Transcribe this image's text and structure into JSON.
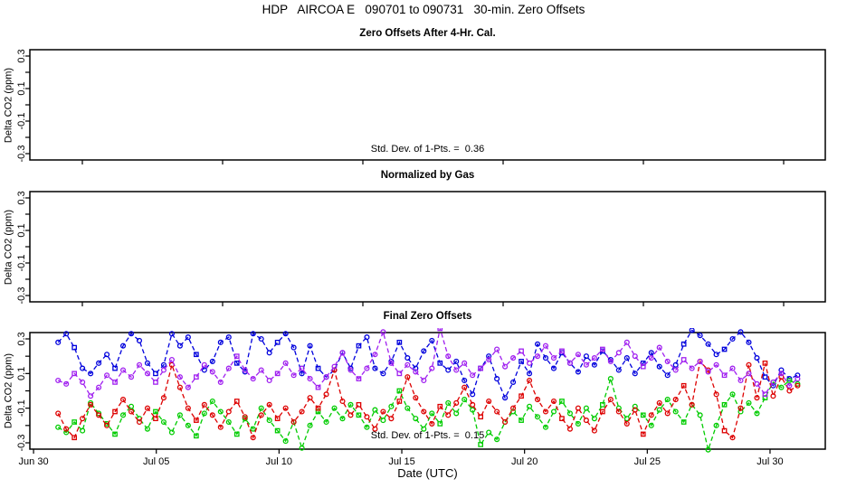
{
  "title": "HDP   AIRCOA E   090701 to 090731   30-min. Zero Offsets",
  "xlabel": "Date (UTC)",
  "ylabel": "Delta CO2 (ppm)",
  "colors": {
    "axis": "#000000",
    "blue": "#0000DD",
    "purple": "#A020F0",
    "red": "#DD0000",
    "green": "#00CC00"
  },
  "chart_data": [
    {
      "type": "scatter",
      "title": "Zero Offsets After 4-Hr. Cal.",
      "annotation": "Std. Dev. of 1-Pts. =  0.36",
      "ylabel": "Delta CO2 (ppm)",
      "ylim": [
        -0.32,
        0.32
      ],
      "yticks": [
        0.3,
        0.1,
        -0.1,
        -0.3
      ],
      "grid": false,
      "series": []
    },
    {
      "type": "scatter",
      "title": "Normalized by Gas",
      "annotation": "",
      "ylabel": "Delta CO2 (ppm)",
      "ylim": [
        -0.32,
        0.32
      ],
      "yticks": [
        0.3,
        0.1,
        -0.1,
        -0.3
      ],
      "grid": false,
      "series": []
    },
    {
      "type": "scatter",
      "title": "Final Zero Offsets",
      "annotation": "Std. Dev. of 1-Pts. =  0.15",
      "ylabel": "Delta CO2 (ppm)",
      "xlabel": "Date (UTC)",
      "ylim": [
        -0.32,
        0.32
      ],
      "yticks": [
        0.3,
        0.1,
        -0.1,
        -0.3
      ],
      "grid": false,
      "xticks": [
        {
          "label": "Jun 30",
          "day": 0
        },
        {
          "label": "Jul 05",
          "day": 5
        },
        {
          "label": "Jul 10",
          "day": 10
        },
        {
          "label": "Jul 15",
          "day": 15
        },
        {
          "label": "Jul 20",
          "day": 20
        },
        {
          "label": "Jul 25",
          "day": 25
        },
        {
          "label": "Jul 30",
          "day": 30
        }
      ],
      "x_unit": "days since Jun 30 00:00 UTC",
      "series": [
        {
          "name": "blue",
          "color": "#0000DD",
          "marker": "open-circle",
          "line": "dashed",
          "x_start": 1.0,
          "x_step": 0.331,
          "values": [
            0.28,
            0.33,
            0.25,
            0.13,
            0.1,
            0.16,
            0.21,
            0.13,
            0.26,
            0.33,
            0.29,
            0.16,
            0.1,
            0.15,
            0.33,
            0.26,
            0.31,
            0.21,
            0.12,
            0.17,
            0.28,
            0.31,
            0.16,
            0.11,
            0.33,
            0.3,
            0.22,
            0.28,
            0.33,
            0.25,
            0.1,
            0.26,
            0.13,
            0.08,
            0.12,
            0.22,
            0.13,
            0.26,
            0.31,
            0.13,
            0.1,
            0.17,
            0.28,
            0.19,
            0.13,
            0.23,
            0.29,
            0.16,
            0.12,
            0.17,
            0.06,
            -0.02,
            0.13,
            0.2,
            0.07,
            -0.04,
            0.05,
            0.17,
            0.1,
            0.27,
            0.19,
            0.13,
            0.22,
            0.16,
            0.11,
            0.2,
            0.15,
            0.23,
            0.18,
            0.12,
            0.19,
            0.1,
            0.16,
            0.22,
            0.14,
            0.09,
            0.15,
            0.27,
            0.35,
            0.32,
            0.27,
            0.21,
            0.24,
            0.3,
            0.34,
            0.28,
            0.19,
            0.08,
            0.03,
            0.12,
            0.07,
            0.09
          ]
        },
        {
          "name": "green",
          "color": "#00CC00",
          "marker": "open-circle",
          "line": "dashed",
          "x_start": 1.0,
          "x_step": 0.331,
          "values": [
            -0.21,
            -0.24,
            -0.18,
            -0.23,
            -0.07,
            -0.13,
            -0.19,
            -0.25,
            -0.14,
            -0.09,
            -0.16,
            -0.22,
            -0.12,
            -0.18,
            -0.24,
            -0.14,
            -0.2,
            -0.26,
            -0.13,
            -0.06,
            -0.12,
            -0.18,
            -0.25,
            -0.16,
            -0.22,
            -0.1,
            -0.17,
            -0.23,
            -0.29,
            -0.18,
            -0.33,
            -0.2,
            -0.12,
            -0.18,
            -0.1,
            -0.16,
            -0.08,
            -0.14,
            -0.21,
            -0.11,
            -0.17,
            -0.09,
            0.0,
            -0.1,
            -0.16,
            -0.22,
            -0.13,
            -0.19,
            -0.07,
            -0.13,
            -0.05,
            -0.11,
            -0.31,
            -0.24,
            -0.28,
            -0.18,
            -0.12,
            -0.17,
            -0.09,
            -0.15,
            -0.21,
            -0.12,
            -0.06,
            -0.13,
            -0.19,
            -0.1,
            -0.16,
            -0.08,
            0.07,
            -0.1,
            -0.16,
            -0.09,
            -0.14,
            -0.2,
            -0.11,
            -0.05,
            -0.12,
            -0.18,
            -0.08,
            -0.14,
            -0.34,
            -0.2,
            -0.08,
            -0.02,
            -0.12,
            -0.07,
            -0.13,
            -0.04,
            0.05,
            0.02,
            0.06,
            0.04
          ]
        },
        {
          "name": "red",
          "color": "#DD0000",
          "marker": "open-circle",
          "line": "dashed",
          "x_start": 1.0,
          "x_step": 0.331,
          "values": [
            -0.13,
            -0.22,
            -0.27,
            -0.16,
            -0.08,
            -0.14,
            -0.2,
            -0.12,
            -0.05,
            -0.12,
            -0.18,
            -0.1,
            -0.16,
            -0.04,
            0.15,
            0.02,
            -0.1,
            -0.17,
            -0.08,
            -0.14,
            -0.21,
            -0.12,
            -0.06,
            -0.15,
            -0.27,
            -0.14,
            -0.08,
            -0.16,
            -0.1,
            -0.18,
            -0.12,
            -0.04,
            -0.1,
            -0.02,
            0.12,
            -0.06,
            -0.14,
            -0.08,
            -0.15,
            -0.22,
            -0.12,
            -0.16,
            -0.06,
            0.08,
            -0.04,
            -0.12,
            -0.19,
            -0.09,
            -0.14,
            -0.07,
            0.02,
            -0.08,
            -0.15,
            -0.06,
            -0.12,
            -0.18,
            -0.1,
            -0.03,
            0.06,
            -0.05,
            -0.12,
            -0.06,
            -0.16,
            -0.22,
            -0.1,
            -0.17,
            -0.23,
            -0.12,
            -0.05,
            -0.12,
            -0.19,
            -0.11,
            -0.25,
            -0.14,
            -0.07,
            -0.13,
            -0.05,
            0.03,
            -0.08,
            0.17,
            0.12,
            -0.02,
            -0.23,
            -0.27,
            -0.1,
            0.15,
            -0.04,
            0.16,
            -0.03,
            0.08,
            0.0,
            0.03
          ]
        },
        {
          "name": "purple",
          "color": "#A020F0",
          "marker": "open-circle",
          "line": "dashed",
          "x_start": 1.0,
          "x_step": 0.331,
          "values": [
            0.06,
            0.04,
            0.1,
            0.05,
            -0.03,
            0.02,
            0.09,
            0.05,
            0.12,
            0.08,
            0.15,
            0.1,
            0.05,
            0.12,
            0.18,
            0.08,
            0.02,
            0.08,
            0.15,
            0.11,
            0.05,
            0.13,
            0.2,
            0.12,
            0.07,
            0.12,
            0.06,
            0.1,
            0.16,
            0.09,
            0.13,
            0.07,
            0.02,
            0.08,
            0.14,
            0.22,
            0.12,
            0.07,
            0.13,
            0.21,
            0.34,
            0.16,
            0.1,
            0.15,
            0.11,
            0.06,
            0.13,
            0.36,
            0.2,
            0.12,
            0.16,
            0.09,
            0.13,
            0.18,
            0.24,
            0.14,
            0.19,
            0.23,
            0.16,
            0.2,
            0.26,
            0.19,
            0.23,
            0.16,
            0.21,
            0.15,
            0.19,
            0.24,
            0.17,
            0.22,
            0.28,
            0.2,
            0.14,
            0.19,
            0.25,
            0.17,
            0.12,
            0.18,
            0.13,
            0.17,
            0.11,
            0.15,
            0.09,
            0.13,
            0.06,
            0.1,
            0.04,
            -0.02,
            0.05,
            0.1,
            0.03,
            0.07
          ]
        }
      ]
    }
  ]
}
